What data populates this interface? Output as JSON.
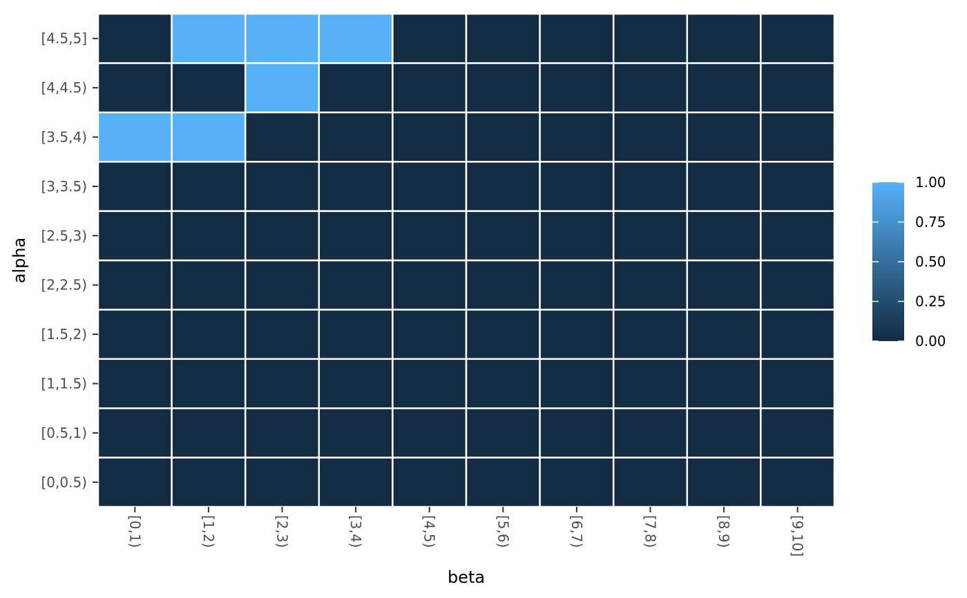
{
  "chart_data": {
    "type": "heatmap",
    "title": "",
    "xlabel": "beta",
    "ylabel": "alpha",
    "x_categories": [
      "[0,1)",
      "[1,2)",
      "[2,3)",
      "[3,4)",
      "[4,5)",
      "[5,6)",
      "[6,7)",
      "[7,8)",
      "[8,9)",
      "[9,10]"
    ],
    "y_categories": [
      "[0,0.5)",
      "[0.5,1)",
      "[1,1.5)",
      "[1.5,2)",
      "[2,2.5)",
      "[2.5,3)",
      "[3,3.5)",
      "[3.5,4)",
      "[4,4.5)",
      "[4.5,5]"
    ],
    "values": [
      [
        0,
        0,
        0,
        0,
        0,
        0,
        0,
        0,
        0,
        0
      ],
      [
        0,
        0,
        0,
        0,
        0,
        0,
        0,
        0,
        0,
        0
      ],
      [
        0,
        0,
        0,
        0,
        0,
        0,
        0,
        0,
        0,
        0
      ],
      [
        0,
        0,
        0,
        0,
        0,
        0,
        0,
        0,
        0,
        0
      ],
      [
        0,
        0,
        0,
        0,
        0,
        0,
        0,
        0,
        0,
        0
      ],
      [
        0,
        0,
        0,
        0,
        0,
        0,
        0,
        0,
        0,
        0
      ],
      [
        0,
        0,
        0,
        0,
        0,
        0,
        0,
        0,
        0,
        0
      ],
      [
        1,
        1,
        0,
        0,
        0,
        0,
        0,
        0,
        0,
        0
      ],
      [
        0,
        0,
        1,
        0,
        0,
        0,
        0,
        0,
        0,
        0
      ],
      [
        0,
        1,
        1,
        1,
        0,
        0,
        0,
        0,
        0,
        0
      ]
    ],
    "legend": {
      "position": "right",
      "ticks": [
        "0.00",
        "0.25",
        "0.50",
        "0.75",
        "1.00"
      ],
      "tick_values": [
        0,
        0.25,
        0.5,
        0.75,
        1
      ],
      "range": [
        0,
        1
      ]
    },
    "colors": {
      "low": "#132B43",
      "high": "#56B1F7",
      "tile_border": "#ffffff",
      "panel_background": "#ebebeb",
      "grid": "#ffffff"
    },
    "grid": true
  }
}
